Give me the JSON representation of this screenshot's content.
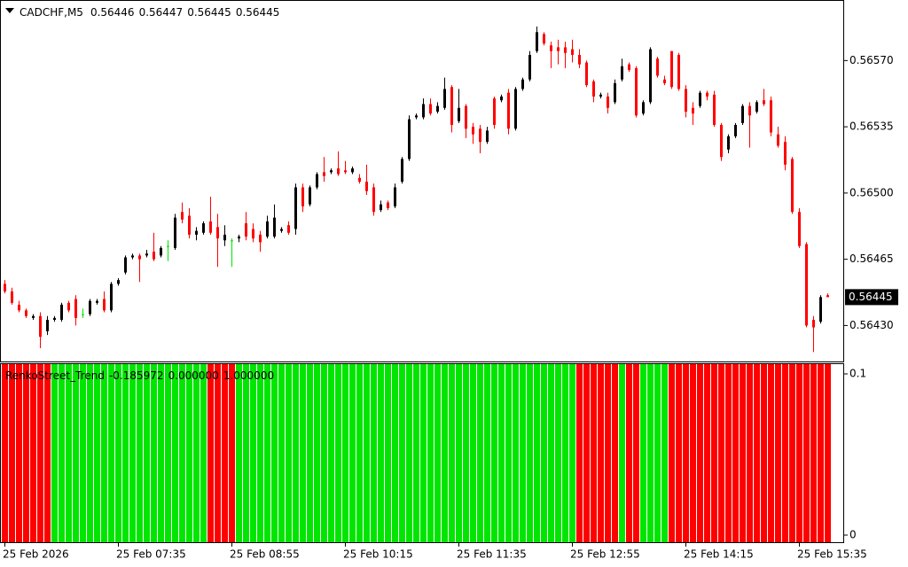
{
  "chart_data": [
    {
      "type": "candlestick",
      "title": "CADCHF,M5",
      "ohlc": [
        0.56446,
        0.56447,
        0.56445,
        0.56445
      ],
      "last_price": 0.56445,
      "categories": [
        "25 Feb 2026",
        null,
        null,
        null,
        null,
        null,
        null,
        null,
        null,
        null,
        null,
        null,
        null,
        null,
        null,
        null,
        "25 Feb 07:35",
        null,
        null,
        null,
        null,
        null,
        null,
        null,
        null,
        null,
        null,
        null,
        null,
        null,
        null,
        null,
        "25 Feb 08:55",
        null,
        null,
        null,
        null,
        null,
        null,
        null,
        null,
        null,
        null,
        null,
        null,
        null,
        null,
        null,
        "25 Feb 10:15",
        null,
        null,
        null,
        null,
        null,
        null,
        null,
        null,
        null,
        null,
        null,
        null,
        null,
        null,
        null,
        "25 Feb 11:35",
        null,
        null,
        null,
        null,
        null,
        null,
        null,
        null,
        null,
        null,
        null,
        null,
        null,
        null,
        null,
        "25 Feb 12:55",
        null,
        null,
        null,
        null,
        null,
        null,
        null,
        null,
        null,
        null,
        null,
        null,
        null,
        null,
        null,
        "25 Feb 14:15",
        null,
        null,
        null,
        null,
        null,
        null,
        null,
        null,
        null,
        null,
        null,
        null,
        null,
        null,
        null,
        "25 Feb 15:35",
        null,
        null,
        null,
        null
      ],
      "open": [
        0.56452,
        0.56448,
        0.56441,
        0.56438,
        0.56434,
        0.56435,
        0.56427,
        0.56433,
        0.56433,
        0.56442,
        0.56444,
        0.56436,
        0.56436,
        0.56442,
        0.56444,
        0.56438,
        0.56452,
        0.56458,
        0.56466,
        0.56467,
        0.56467,
        0.56469,
        0.56467,
        0.56472,
        0.56471,
        0.5649,
        0.56488,
        0.56478,
        0.56479,
        0.56485,
        0.56482,
        0.56475,
        0.56475,
        0.56476,
        0.56484,
        0.56481,
        0.56478,
        0.56477,
        0.56477,
        0.5648,
        0.56483,
        0.56481,
        0.56503,
        0.56494,
        0.56503,
        0.56511,
        0.56511,
        0.56513,
        0.56512,
        0.56511,
        0.56508,
        0.56506,
        0.56503,
        0.56491,
        0.56495,
        0.56493,
        0.56506,
        0.56518,
        0.5654,
        0.5654,
        0.56547,
        0.56543,
        0.56545,
        0.56556,
        0.56538,
        0.56546,
        0.56535,
        0.56534,
        0.56527,
        0.5655,
        0.56549,
        0.56553,
        0.56534,
        0.56555,
        0.5656,
        0.56575,
        0.56584,
        0.56578,
        0.56577,
        0.56577,
        0.56576,
        0.56573,
        0.56569,
        0.56559,
        0.56551,
        0.56551,
        0.56548,
        0.5656,
        0.56568,
        0.56566,
        0.56542,
        0.56548,
        0.56571,
        0.5656,
        0.56575,
        0.56573,
        0.56555,
        0.56545,
        0.56546,
        0.56553,
        0.56552,
        0.56536,
        0.56523,
        0.5653,
        0.56537,
        0.56546,
        0.56543,
        0.56549,
        0.56549,
        0.56531,
        0.56527,
        0.56518,
        0.5649,
        0.56473,
        0.56433,
        0.56432,
        0.56446
      ],
      "high": [
        0.56454,
        0.5645,
        0.56443,
        0.56439,
        0.56436,
        0.56437,
        0.56435,
        0.56435,
        0.56442,
        0.56443,
        0.56446,
        0.56439,
        0.56444,
        0.56444,
        0.56448,
        0.56453,
        0.56455,
        0.56467,
        0.56468,
        0.56468,
        0.5647,
        0.56479,
        0.56472,
        0.56475,
        0.56489,
        0.56495,
        0.56492,
        0.56482,
        0.56485,
        0.56498,
        0.56489,
        0.56483,
        0.56476,
        0.56478,
        0.5649,
        0.56484,
        0.5648,
        0.56488,
        0.56494,
        0.56482,
        0.56485,
        0.56505,
        0.56505,
        0.56504,
        0.56511,
        0.56519,
        0.56513,
        0.56522,
        0.56517,
        0.56514,
        0.5651,
        0.56515,
        0.56505,
        0.56496,
        0.56496,
        0.56505,
        0.56519,
        0.56541,
        0.56542,
        0.5655,
        0.5655,
        0.56548,
        0.56561,
        0.56557,
        0.56555,
        0.56547,
        0.56537,
        0.56536,
        0.56535,
        0.56551,
        0.56552,
        0.56555,
        0.56556,
        0.56561,
        0.56575,
        0.56588,
        0.56585,
        0.5658,
        0.56581,
        0.5658,
        0.56581,
        0.56576,
        0.5657,
        0.5656,
        0.56553,
        0.56553,
        0.5656,
        0.56571,
        0.56569,
        0.56567,
        0.56549,
        0.56577,
        0.56572,
        0.56562,
        0.56575,
        0.56574,
        0.56557,
        0.56548,
        0.56554,
        0.56554,
        0.56554,
        0.56537,
        0.56531,
        0.56537,
        0.56547,
        0.56548,
        0.56549,
        0.56555,
        0.56551,
        0.56535,
        0.5653,
        0.56519,
        0.56492,
        0.56474,
        0.56435,
        0.56446,
        0.56447
      ],
      "low": [
        0.56447,
        0.56441,
        0.56437,
        0.56434,
        0.56433,
        0.56418,
        0.56425,
        0.56432,
        0.56432,
        0.56437,
        0.5643,
        0.56434,
        0.56435,
        0.56441,
        0.56437,
        0.56437,
        0.56451,
        0.56457,
        0.56465,
        0.56453,
        0.56466,
        0.56464,
        0.56466,
        0.56464,
        0.5647,
        0.56484,
        0.56476,
        0.56475,
        0.56478,
        0.56478,
        0.56461,
        0.56472,
        0.56461,
        0.56474,
        0.56475,
        0.56474,
        0.56469,
        0.56476,
        0.56476,
        0.56479,
        0.56478,
        0.56478,
        0.5649,
        0.56493,
        0.56502,
        0.56506,
        0.5651,
        0.56509,
        0.5651,
        0.5651,
        0.56505,
        0.56499,
        0.56488,
        0.5649,
        0.56491,
        0.56492,
        0.56505,
        0.56517,
        0.56539,
        0.56539,
        0.56541,
        0.56542,
        0.56544,
        0.56532,
        0.56537,
        0.56529,
        0.56526,
        0.56521,
        0.56526,
        0.56534,
        0.56548,
        0.56531,
        0.56533,
        0.56554,
        0.56559,
        0.56574,
        0.56578,
        0.56566,
        0.56568,
        0.56566,
        0.56569,
        0.56566,
        0.56556,
        0.56548,
        0.5655,
        0.56542,
        0.56547,
        0.56559,
        0.56564,
        0.5654,
        0.56541,
        0.56547,
        0.56561,
        0.56557,
        0.56555,
        0.56554,
        0.5654,
        0.56536,
        0.56545,
        0.56549,
        0.56535,
        0.56517,
        0.56521,
        0.56529,
        0.56536,
        0.56524,
        0.56542,
        0.56546,
        0.5653,
        0.56524,
        0.56512,
        0.56489,
        0.56471,
        0.56429,
        0.56416,
        0.56431,
        0.56445
      ],
      "close": [
        0.56448,
        0.56442,
        0.56438,
        0.56435,
        0.56435,
        0.56424,
        0.56433,
        0.56434,
        0.56441,
        0.56438,
        0.56434,
        0.56436,
        0.56443,
        0.56443,
        0.56438,
        0.56452,
        0.56454,
        0.56466,
        0.56467,
        0.56465,
        0.56468,
        0.56465,
        0.56471,
        0.56472,
        0.56487,
        0.56486,
        0.56478,
        0.5648,
        0.56484,
        0.56479,
        0.56476,
        0.56478,
        0.56475,
        0.56477,
        0.56477,
        0.56476,
        0.56474,
        0.56485,
        0.56487,
        0.56481,
        0.56479,
        0.56503,
        0.56493,
        0.56503,
        0.5651,
        0.56509,
        0.56512,
        0.5651,
        0.56511,
        0.56513,
        0.56506,
        0.56501,
        0.5649,
        0.56494,
        0.56492,
        0.56503,
        0.56518,
        0.56539,
        0.56541,
        0.56547,
        0.56542,
        0.56546,
        0.56555,
        0.56536,
        0.56545,
        0.56534,
        0.56531,
        0.56527,
        0.56533,
        0.56536,
        0.56551,
        0.56534,
        0.56555,
        0.5656,
        0.56573,
        0.56585,
        0.56579,
        0.56575,
        0.56575,
        0.56574,
        0.56573,
        0.56568,
        0.56557,
        0.56551,
        0.56552,
        0.56545,
        0.56558,
        0.56567,
        0.56565,
        0.56541,
        0.56548,
        0.56576,
        0.56562,
        0.56558,
        0.56556,
        0.56555,
        0.56543,
        0.56542,
        0.56553,
        0.56551,
        0.56536,
        0.56519,
        0.5653,
        0.56536,
        0.56546,
        0.56541,
        0.56548,
        0.56547,
        0.56532,
        0.56525,
        0.56515,
        0.5649,
        0.56472,
        0.5643,
        0.56429,
        0.56445,
        0.56445
      ],
      "up_color": "#000000",
      "down_color": "#ff0000",
      "doji_color": "#00e600",
      "ylim": [
        0.56411,
        0.56602
      ],
      "yticks": [
        {
          "value": 0.5657,
          "label": "0.56570"
        },
        0.56535,
        {
          "value": 0.565,
          "label": "0.56500"
        },
        0.56465,
        {
          "value": 0.5643,
          "label": "0.56430"
        }
      ]
    },
    {
      "type": "bar",
      "title": "RenkoStreet_Trend",
      "readout": [
        -0.185972,
        {
          "value": 0,
          "label": "0.000000"
        },
        {
          "value": 1,
          "label": "1.000000"
        }
      ],
      "values": [
        1,
        1,
        1,
        1,
        1,
        1,
        1,
        1,
        1,
        1,
        1,
        1,
        1,
        1,
        1,
        1,
        1,
        1,
        1,
        1,
        1,
        1,
        1,
        1,
        1,
        1,
        1,
        1,
        1,
        1,
        1,
        1,
        1,
        1,
        1,
        1,
        1,
        1,
        1,
        1,
        1,
        1,
        1,
        1,
        1,
        1,
        1,
        1,
        1,
        1,
        1,
        1,
        1,
        1,
        1,
        1,
        1,
        1,
        1,
        1,
        1,
        1,
        1,
        1,
        1,
        1,
        1,
        1,
        1,
        1,
        1,
        1,
        1,
        1,
        1,
        1,
        1,
        1,
        1,
        1,
        1,
        1,
        1,
        1,
        1,
        1,
        1,
        1,
        1,
        1,
        1,
        1,
        1,
        1,
        1,
        1,
        1,
        1,
        1,
        1,
        1,
        1,
        1,
        1,
        1,
        1,
        1,
        1,
        1,
        1,
        1,
        1,
        1,
        1,
        1,
        1,
        1
      ],
      "colors": [
        "#ff0000",
        "#ff0000",
        "#ff0000",
        "#ff0000",
        "#ff0000",
        "#ff0000",
        "#ff0000",
        "#00e600",
        "#00e600",
        "#00e600",
        "#00e600",
        "#00e600",
        "#00e600",
        "#00e600",
        "#00e600",
        "#00e600",
        "#00e600",
        "#00e600",
        "#00e600",
        "#00e600",
        "#00e600",
        "#00e600",
        "#00e600",
        "#00e600",
        "#00e600",
        "#00e600",
        "#00e600",
        "#00e600",
        "#00e600",
        "#ff0000",
        "#ff0000",
        "#ff0000",
        "#ff0000",
        "#00e600",
        "#00e600",
        "#00e600",
        "#00e600",
        "#00e600",
        "#00e600",
        "#00e600",
        "#00e600",
        "#00e600",
        "#00e600",
        "#00e600",
        "#00e600",
        "#00e600",
        "#00e600",
        "#00e600",
        "#00e600",
        "#00e600",
        "#00e600",
        "#00e600",
        "#00e600",
        "#00e600",
        "#00e600",
        "#00e600",
        "#00e600",
        "#00e600",
        "#00e600",
        "#00e600",
        "#00e600",
        "#00e600",
        "#00e600",
        "#00e600",
        "#00e600",
        "#00e600",
        "#00e600",
        "#00e600",
        "#00e600",
        "#00e600",
        "#00e600",
        "#00e600",
        "#00e600",
        "#00e600",
        "#00e600",
        "#00e600",
        "#00e600",
        "#00e600",
        "#00e600",
        "#00e600",
        "#00e600",
        "#ff0000",
        "#ff0000",
        "#ff0000",
        "#ff0000",
        "#ff0000",
        "#ff0000",
        "#00e600",
        "#ff0000",
        "#ff0000",
        "#00e600",
        "#00e600",
        "#00e600",
        "#00e600",
        "#ff0000",
        "#ff0000",
        "#ff0000",
        "#ff0000",
        "#ff0000",
        "#ff0000",
        "#ff0000",
        "#ff0000",
        "#ff0000",
        "#ff0000",
        "#ff0000",
        "#ff0000",
        "#ff0000",
        "#ff0000",
        "#ff0000",
        "#ff0000",
        "#ff0000",
        "#ff0000",
        "#ff0000",
        "#ff0000",
        "#ff0000",
        "#ff0000",
        "#ff0000"
      ],
      "ylim": [
        -0.0044,
        0.1066
      ],
      "yticks": [
        0.1,
        0
      ]
    }
  ]
}
